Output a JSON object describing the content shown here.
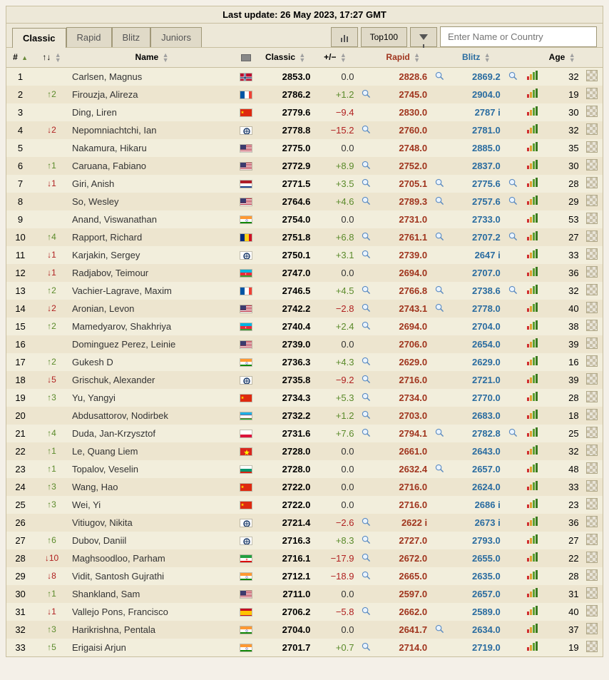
{
  "last_update": "Last update: 26 May 2023, 17:27 GMT",
  "tabs": {
    "classic": "Classic",
    "rapid": "Rapid",
    "blitz": "Blitz",
    "juniors": "Juniors"
  },
  "toolbar": {
    "top100": "Top100",
    "search_placeholder": "Enter Name or Country"
  },
  "columns": {
    "rank": "#",
    "change": "↑↓",
    "name": "Name",
    "classic": "Classic",
    "plusminus": "+/−",
    "rapid": "Rapid",
    "blitz": "Blitz",
    "age": "Age"
  },
  "flags": {
    "NOR": "<svg class='flag-svg' viewBox='0 0 18 12'><rect width='18' height='12' fill='#ba0c2f'/><rect x='5' width='3' height='12' fill='#fff'/><rect y='4.5' width='18' height='3' fill='#fff'/><rect x='6' width='1.2' height='12' fill='#00205b'/><rect y='5.4' width='18' height='1.2' fill='#00205b'/></svg>",
    "FRA": "<svg class='flag-svg' viewBox='0 0 18 12'><rect width='6' height='12' fill='#0055a4'/><rect x='6' width='6' height='12' fill='#fff'/><rect x='12' width='6' height='12' fill='#ef4135'/></svg>",
    "CHN": "<svg class='flag-svg' viewBox='0 0 18 12'><rect width='18' height='12' fill='#de2910'/><polygon points='3,2 3.6,3.6 5.2,3.6 3.9,4.6 4.5,6.2 3,5.2 1.5,6.2 2.1,4.6 0.8,3.6 2.4,3.6' fill='#ffde00'/></svg>",
    "FIDE": "<svg class='flag-svg' viewBox='0 0 18 12'><rect width='18' height='12' fill='#fff'/><circle cx='9' cy='6' r='4' fill='none' stroke='#1a3a6a' stroke-width='1.5'/><path d='M9 3 L9 9 M6 6 L12 6' stroke='#1a3a6a' stroke-width='1'/></svg>",
    "USA": "<svg class='flag-svg' viewBox='0 0 18 12'><rect width='18' height='12' fill='#b22234'/><rect y='1' width='18' height='1' fill='#fff'/><rect y='3' width='18' height='1' fill='#fff'/><rect y='5' width='18' height='1' fill='#fff'/><rect y='7' width='18' height='1' fill='#fff'/><rect y='9' width='18' height='1' fill='#fff'/><rect y='11' width='18' height='1' fill='#fff'/><rect width='8' height='6.5' fill='#3c3b6e'/></svg>",
    "NED": "<svg class='flag-svg' viewBox='0 0 18 12'><rect width='18' height='4' fill='#ae1c28'/><rect y='4' width='18' height='4' fill='#fff'/><rect y='8' width='18' height='4' fill='#21468b'/></svg>",
    "IND": "<svg class='flag-svg' viewBox='0 0 18 12'><rect width='18' height='4' fill='#ff9933'/><rect y='4' width='18' height='4' fill='#fff'/><rect y='8' width='18' height='4' fill='#138808'/><circle cx='9' cy='6' r='1.3' fill='none' stroke='#000080' stroke-width='0.4'/></svg>",
    "ROU": "<svg class='flag-svg' viewBox='0 0 18 12'><rect width='6' height='12' fill='#002b7f'/><rect x='6' width='6' height='12' fill='#fcd116'/><rect x='12' width='6' height='12' fill='#ce1126'/></svg>",
    "AZE": "<svg class='flag-svg' viewBox='0 0 18 12'><rect width='18' height='4' fill='#00b5e2'/><rect y='4' width='18' height='4' fill='#ed2939'/><rect y='8' width='18' height='4' fill='#3f9c35'/><circle cx='8' cy='6' r='1.2' fill='#fff'/><circle cx='8.5' cy='6' r='1' fill='#ed2939'/></svg>",
    "UZB": "<svg class='flag-svg' viewBox='0 0 18 12'><rect width='18' height='4' fill='#1eb0e6'/><rect y='4' width='18' height='4' fill='#fff'/><rect y='8' width='18' height='4' fill='#1eb53a'/><rect y='3.6' width='18' height='0.5' fill='#ce1126'/><rect y='7.9' width='18' height='0.5' fill='#ce1126'/></svg>",
    "POL": "<svg class='flag-svg' viewBox='0 0 18 12'><rect width='18' height='6' fill='#fff'/><rect y='6' width='18' height='6' fill='#dc143c'/></svg>",
    "VIE": "<svg class='flag-svg' viewBox='0 0 18 12'><rect width='18' height='12' fill='#da251d'/><polygon points='9,2 10,5 13,5 10.5,7 11.5,10 9,8 6.5,10 7.5,7 5,5 8,5' fill='#ffff00'/></svg>",
    "BUL": "<svg class='flag-svg' viewBox='0 0 18 12'><rect width='18' height='4' fill='#fff'/><rect y='4' width='18' height='4' fill='#00966e'/><rect y='8' width='18' height='4' fill='#d62612'/></svg>",
    "IRI": "<svg class='flag-svg' viewBox='0 0 18 12'><rect width='18' height='4' fill='#239f40'/><rect y='4' width='18' height='4' fill='#fff'/><rect y='8' width='18' height='4' fill='#da0000'/><circle cx='9' cy='6' r='1' fill='none' stroke='#da0000' stroke-width='0.5'/></svg>",
    "ESP": "<svg class='flag-svg' viewBox='0 0 18 12'><rect width='18' height='3' fill='#c60b1e'/><rect y='3' width='18' height='6' fill='#ffc400'/><rect y='9' width='18' height='3' fill='#c60b1e'/></svg>"
  },
  "rows": [
    {
      "rank": 1,
      "chg": "",
      "name": "Carlsen, Magnus",
      "flag": "NOR",
      "classic": "2853.0",
      "diff": "0.0",
      "m1": false,
      "rapid": "2828.6",
      "m2": true,
      "blitz": "2869.2",
      "m3": true,
      "age": 32
    },
    {
      "rank": 2,
      "chg": "↑2",
      "name": "Firouzja, Alireza",
      "flag": "FRA",
      "classic": "2786.2",
      "diff": "+1.2",
      "m1": true,
      "rapid": "2745.0",
      "m2": false,
      "blitz": "2904.0",
      "m3": false,
      "age": 19
    },
    {
      "rank": 3,
      "chg": "",
      "name": "Ding, Liren",
      "flag": "CHN",
      "classic": "2779.6",
      "diff": "−9.4",
      "m1": false,
      "rapid": "2830.0",
      "m2": false,
      "blitz": "2787 i",
      "m3": false,
      "age": 30
    },
    {
      "rank": 4,
      "chg": "↓2",
      "name": "Nepomniachtchi, Ian",
      "flag": "FIDE",
      "classic": "2778.8",
      "diff": "−15.2",
      "m1": true,
      "rapid": "2760.0",
      "m2": false,
      "blitz": "2781.0",
      "m3": false,
      "age": 32
    },
    {
      "rank": 5,
      "chg": "",
      "name": "Nakamura, Hikaru",
      "flag": "USA",
      "classic": "2775.0",
      "diff": "0.0",
      "m1": false,
      "rapid": "2748.0",
      "m2": false,
      "blitz": "2885.0",
      "m3": false,
      "age": 35
    },
    {
      "rank": 6,
      "chg": "↑1",
      "name": "Caruana, Fabiano",
      "flag": "USA",
      "classic": "2772.9",
      "diff": "+8.9",
      "m1": true,
      "rapid": "2752.0",
      "m2": false,
      "blitz": "2837.0",
      "m3": false,
      "age": 30
    },
    {
      "rank": 7,
      "chg": "↓1",
      "name": "Giri, Anish",
      "flag": "NED",
      "classic": "2771.5",
      "diff": "+3.5",
      "m1": true,
      "rapid": "2705.1",
      "m2": true,
      "blitz": "2775.6",
      "m3": true,
      "age": 28
    },
    {
      "rank": 8,
      "chg": "",
      "name": "So, Wesley",
      "flag": "USA",
      "classic": "2764.6",
      "diff": "+4.6",
      "m1": true,
      "rapid": "2789.3",
      "m2": true,
      "blitz": "2757.6",
      "m3": true,
      "age": 29
    },
    {
      "rank": 9,
      "chg": "",
      "name": "Anand, Viswanathan",
      "flag": "IND",
      "classic": "2754.0",
      "diff": "0.0",
      "m1": false,
      "rapid": "2731.0",
      "m2": false,
      "blitz": "2733.0",
      "m3": false,
      "age": 53
    },
    {
      "rank": 10,
      "chg": "↑4",
      "name": "Rapport, Richard",
      "flag": "ROU",
      "classic": "2751.8",
      "diff": "+6.8",
      "m1": true,
      "rapid": "2761.1",
      "m2": true,
      "blitz": "2707.2",
      "m3": true,
      "age": 27
    },
    {
      "rank": 11,
      "chg": "↓1",
      "name": "Karjakin, Sergey",
      "flag": "FIDE",
      "classic": "2750.1",
      "diff": "+3.1",
      "m1": true,
      "rapid": "2739.0",
      "m2": false,
      "blitz": "2647 i",
      "m3": false,
      "age": 33
    },
    {
      "rank": 12,
      "chg": "↓1",
      "name": "Radjabov, Teimour",
      "flag": "AZE",
      "classic": "2747.0",
      "diff": "0.0",
      "m1": false,
      "rapid": "2694.0",
      "m2": false,
      "blitz": "2707.0",
      "m3": false,
      "age": 36
    },
    {
      "rank": 13,
      "chg": "↑2",
      "name": "Vachier-Lagrave, Maxim",
      "flag": "FRA",
      "classic": "2746.5",
      "diff": "+4.5",
      "m1": true,
      "rapid": "2766.8",
      "m2": true,
      "blitz": "2738.6",
      "m3": true,
      "age": 32
    },
    {
      "rank": 14,
      "chg": "↓2",
      "name": "Aronian, Levon",
      "flag": "USA",
      "classic": "2742.2",
      "diff": "−2.8",
      "m1": true,
      "rapid": "2743.1",
      "m2": true,
      "blitz": "2778.0",
      "m3": false,
      "age": 40
    },
    {
      "rank": 15,
      "chg": "↑2",
      "name": "Mamedyarov, Shakhriya",
      "flag": "AZE",
      "classic": "2740.4",
      "diff": "+2.4",
      "m1": true,
      "rapid": "2694.0",
      "m2": false,
      "blitz": "2704.0",
      "m3": false,
      "age": 38
    },
    {
      "rank": 16,
      "chg": "",
      "name": "Dominguez Perez, Leinie",
      "flag": "USA",
      "classic": "2739.0",
      "diff": "0.0",
      "m1": false,
      "rapid": "2706.0",
      "m2": false,
      "blitz": "2654.0",
      "m3": false,
      "age": 39
    },
    {
      "rank": 17,
      "chg": "↑2",
      "name": "Gukesh D",
      "flag": "IND",
      "classic": "2736.3",
      "diff": "+4.3",
      "m1": true,
      "rapid": "2629.0",
      "m2": false,
      "blitz": "2629.0",
      "m3": false,
      "age": 16
    },
    {
      "rank": 18,
      "chg": "↓5",
      "name": "Grischuk, Alexander",
      "flag": "FIDE",
      "classic": "2735.8",
      "diff": "−9.2",
      "m1": true,
      "rapid": "2716.0",
      "m2": false,
      "blitz": "2721.0",
      "m3": false,
      "age": 39
    },
    {
      "rank": 19,
      "chg": "↑3",
      "name": "Yu, Yangyi",
      "flag": "CHN",
      "classic": "2734.3",
      "diff": "+5.3",
      "m1": true,
      "rapid": "2734.0",
      "m2": false,
      "blitz": "2770.0",
      "m3": false,
      "age": 28
    },
    {
      "rank": 20,
      "chg": "",
      "name": "Abdusattorov, Nodirbek",
      "flag": "UZB",
      "classic": "2732.2",
      "diff": "+1.2",
      "m1": true,
      "rapid": "2703.0",
      "m2": false,
      "blitz": "2683.0",
      "m3": false,
      "age": 18
    },
    {
      "rank": 21,
      "chg": "↑4",
      "name": "Duda, Jan-Krzysztof",
      "flag": "POL",
      "classic": "2731.6",
      "diff": "+7.6",
      "m1": true,
      "rapid": "2794.1",
      "m2": true,
      "blitz": "2782.8",
      "m3": true,
      "age": 25
    },
    {
      "rank": 22,
      "chg": "↑1",
      "name": "Le, Quang Liem",
      "flag": "VIE",
      "classic": "2728.0",
      "diff": "0.0",
      "m1": false,
      "rapid": "2661.0",
      "m2": false,
      "blitz": "2643.0",
      "m3": false,
      "age": 32
    },
    {
      "rank": 23,
      "chg": "↑1",
      "name": "Topalov, Veselin",
      "flag": "BUL",
      "classic": "2728.0",
      "diff": "0.0",
      "m1": false,
      "rapid": "2632.4",
      "m2": true,
      "blitz": "2657.0",
      "m3": false,
      "age": 48
    },
    {
      "rank": 24,
      "chg": "↑3",
      "name": "Wang, Hao",
      "flag": "CHN",
      "classic": "2722.0",
      "diff": "0.0",
      "m1": false,
      "rapid": "2716.0",
      "m2": false,
      "blitz": "2624.0",
      "m3": false,
      "age": 33
    },
    {
      "rank": 25,
      "chg": "↑3",
      "name": "Wei, Yi",
      "flag": "CHN",
      "classic": "2722.0",
      "diff": "0.0",
      "m1": false,
      "rapid": "2716.0",
      "m2": false,
      "blitz": "2686 i",
      "m3": false,
      "age": 23
    },
    {
      "rank": 26,
      "chg": "",
      "name": "Vitiugov, Nikita",
      "flag": "FIDE",
      "classic": "2721.4",
      "diff": "−2.6",
      "m1": true,
      "rapid": "2622 i",
      "m2": false,
      "blitz": "2673 i",
      "m3": false,
      "age": 36
    },
    {
      "rank": 27,
      "chg": "↑6",
      "name": "Dubov, Daniil",
      "flag": "FIDE",
      "classic": "2716.3",
      "diff": "+8.3",
      "m1": true,
      "rapid": "2727.0",
      "m2": false,
      "blitz": "2793.0",
      "m3": false,
      "age": 27
    },
    {
      "rank": 28,
      "chg": "↓10",
      "name": "Maghsoodloo, Parham",
      "flag": "IRI",
      "classic": "2716.1",
      "diff": "−17.9",
      "m1": true,
      "rapid": "2672.0",
      "m2": false,
      "blitz": "2655.0",
      "m3": false,
      "age": 22
    },
    {
      "rank": 29,
      "chg": "↓8",
      "name": "Vidit, Santosh Gujrathi",
      "flag": "IND",
      "classic": "2712.1",
      "diff": "−18.9",
      "m1": true,
      "rapid": "2665.0",
      "m2": false,
      "blitz": "2635.0",
      "m3": false,
      "age": 28
    },
    {
      "rank": 30,
      "chg": "↑1",
      "name": "Shankland, Sam",
      "flag": "USA",
      "classic": "2711.0",
      "diff": "0.0",
      "m1": false,
      "rapid": "2597.0",
      "m2": false,
      "blitz": "2657.0",
      "m3": false,
      "age": 31
    },
    {
      "rank": 31,
      "chg": "↓1",
      "name": "Vallejo Pons, Francisco",
      "flag": "ESP",
      "classic": "2706.2",
      "diff": "−5.8",
      "m1": true,
      "rapid": "2662.0",
      "m2": false,
      "blitz": "2589.0",
      "m3": false,
      "age": 40
    },
    {
      "rank": 32,
      "chg": "↑3",
      "name": "Harikrishna, Pentala",
      "flag": "IND",
      "classic": "2704.0",
      "diff": "0.0",
      "m1": false,
      "rapid": "2641.7",
      "m2": true,
      "blitz": "2634.0",
      "m3": false,
      "age": 37
    },
    {
      "rank": 33,
      "chg": "↑5",
      "name": "Erigaisi Arjun",
      "flag": "IND",
      "classic": "2701.7",
      "diff": "+0.7",
      "m1": true,
      "rapid": "2714.0",
      "m2": false,
      "blitz": "2719.0",
      "m3": false,
      "age": 19
    }
  ]
}
